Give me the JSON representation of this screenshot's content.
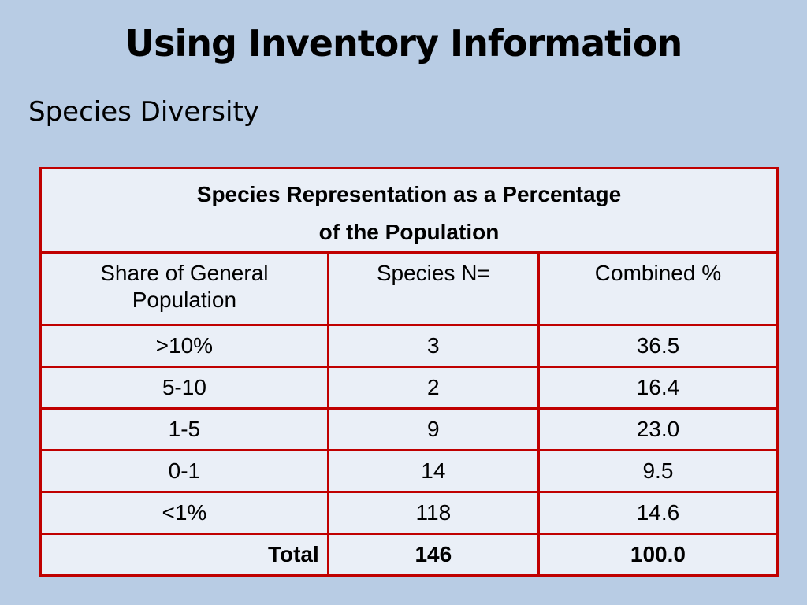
{
  "slide": {
    "title": "Using Inventory Information",
    "subtitle": "Species Diversity"
  },
  "table": {
    "caption_line1": "Species Representation as a Percentage",
    "caption_line2": "of the Population",
    "headers": [
      "Share of General Population",
      "Species N=",
      "Combined %"
    ],
    "rows": [
      {
        "share": ">10%",
        "species_n": "3",
        "combined": "36.5"
      },
      {
        "share": "5-10",
        "species_n": "2",
        "combined": "16.4"
      },
      {
        "share": "1-5",
        "species_n": "9",
        "combined": "23.0"
      },
      {
        "share": "0-1",
        "species_n": "14",
        "combined": "9.5"
      },
      {
        "share": "<1%",
        "species_n": "118",
        "combined": "14.6"
      }
    ],
    "total": {
      "label": "Total",
      "species_n": "146",
      "combined": "100.0"
    }
  },
  "colors": {
    "background": "#b8cce4",
    "table_background": "#eaeff7",
    "border": "#c00000"
  }
}
